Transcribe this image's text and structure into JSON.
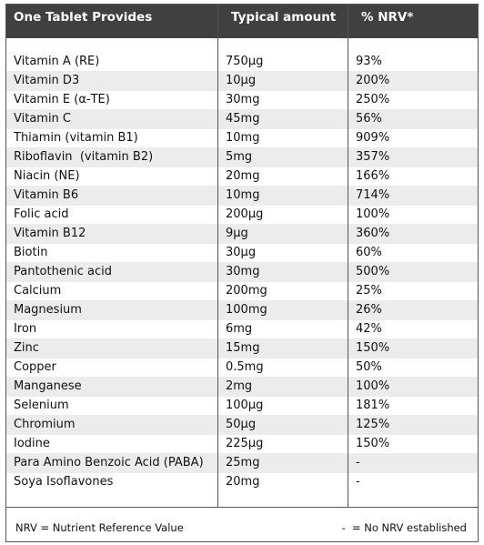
{
  "table": {
    "header": [
      "One Tablet Provides",
      "Typical amount",
      "% NRV*"
    ],
    "rows": [
      [
        "Vitamin A (RE)",
        "750µg",
        "93%"
      ],
      [
        "Vitamin D3",
        "10µg",
        "200%"
      ],
      [
        "Vitamin E (α-TE)",
        "30mg",
        "250%"
      ],
      [
        "Vitamin C",
        "45mg",
        "56%"
      ],
      [
        "Thiamin (vitamin B1)",
        "10mg",
        "909%"
      ],
      [
        "Riboflavin  (vitamin B2)",
        "5mg",
        "357%"
      ],
      [
        "Niacin (NE)",
        "20mg",
        "166%"
      ],
      [
        "Vitamin B6",
        "10mg",
        "714%"
      ],
      [
        "Folic acid",
        "200µg",
        "100%"
      ],
      [
        "Vitamin B12",
        "9µg",
        "360%"
      ],
      [
        "Biotin",
        "30µg",
        "60%"
      ],
      [
        "Pantothenic acid",
        "30mg",
        "500%"
      ],
      [
        "Calcium",
        "200mg",
        "25%"
      ],
      [
        "Magnesium",
        "100mg",
        "26%"
      ],
      [
        "Iron",
        "6mg",
        "42%"
      ],
      [
        "Zinc",
        "15mg",
        "150%"
      ],
      [
        "Copper",
        "0.5mg",
        "50%"
      ],
      [
        "Manganese",
        "2mg",
        "100%"
      ],
      [
        "Selenium",
        "100µg",
        "181%"
      ],
      [
        "Chromium",
        "50µg",
        "125%"
      ],
      [
        "Iodine",
        "225µg",
        "150%"
      ],
      [
        "Para Amino Benzoic Acid (PABA)",
        "25mg",
        "-"
      ],
      [
        "Soya Isoflavones",
        "20mg",
        "-"
      ]
    ]
  },
  "footer": {
    "left": "NRV = Nutrient Reference Value",
    "right": "-  = No NRV established"
  }
}
